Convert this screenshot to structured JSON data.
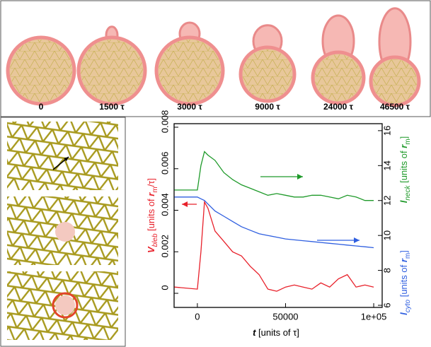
{
  "snapshots": {
    "labels": [
      "0",
      "1500 τ",
      "3000 τ",
      "9000 τ",
      "24000 τ",
      "46500 τ"
    ]
  },
  "chart_data": {
    "type": "line",
    "x": [
      -13000,
      0,
      2000,
      4000,
      6000,
      10000,
      15000,
      20000,
      25000,
      30000,
      35000,
      40000,
      45000,
      50000,
      55000,
      60000,
      65000,
      70000,
      75000,
      80000,
      85000,
      90000,
      95000,
      100000
    ],
    "series": [
      {
        "color": "#e8202a",
        "values": [
          0.0003,
          0.0002,
          0.002,
          0.0044,
          0.0041,
          0.003,
          0.0025,
          0.002,
          0.0018,
          0.0013,
          0.0009,
          0.0002,
          0.0001,
          0.0003,
          0.0004,
          0.0003,
          0.0002,
          0.0005,
          0.0003,
          0.0007,
          0.0009,
          0.0003,
          0.0004,
          0.0003
        ]
      },
      {
        "color": "#1f9a2a",
        "axis": "y2",
        "values": [
          12.6,
          12.6,
          14.0,
          14.8,
          14.6,
          14.3,
          13.6,
          13.2,
          12.9,
          12.7,
          12.5,
          12.3,
          12.4,
          12.3,
          12.2,
          12.2,
          12.3,
          12.3,
          12.2,
          12.1,
          12.3,
          12.2,
          12.0,
          12.0
        ]
      },
      {
        "color": "#2f5fe0",
        "axis": "y2",
        "values": [
          12.2,
          12.2,
          12.1,
          12.0,
          11.8,
          11.4,
          11.1,
          10.8,
          10.5,
          10.3,
          10.1,
          10.0,
          9.9,
          9.8,
          9.75,
          9.7,
          9.65,
          9.6,
          9.55,
          9.5,
          9.45,
          9.4,
          9.35,
          9.3
        ]
      }
    ],
    "xlim": [
      -13200,
      104800
    ],
    "xticks": [
      0,
      50000,
      {
        "value": 100000,
        "label": "1e+05"
      }
    ],
    "ylim": [
      -0.00068,
      0.00817
    ],
    "yticks": [
      0,
      0.002,
      0.004,
      0.006,
      0.008
    ],
    "y2lim": [
      5.88,
      16.4
    ],
    "y2ticks": [
      6,
      8,
      10,
      12,
      14,
      16
    ],
    "xlabel": [
      "t",
      " [units of ",
      "τ",
      "]"
    ],
    "ylabel": [
      "V",
      "bleb",
      " [units of ",
      "r",
      "m",
      "/τ]"
    ],
    "y2labels": [
      [
        "l",
        "neck",
        " [units of ",
        "r",
        "m",
        "]"
      ],
      [
        "l",
        "cyto",
        " [units of ",
        "r",
        "m",
        "]"
      ]
    ]
  }
}
